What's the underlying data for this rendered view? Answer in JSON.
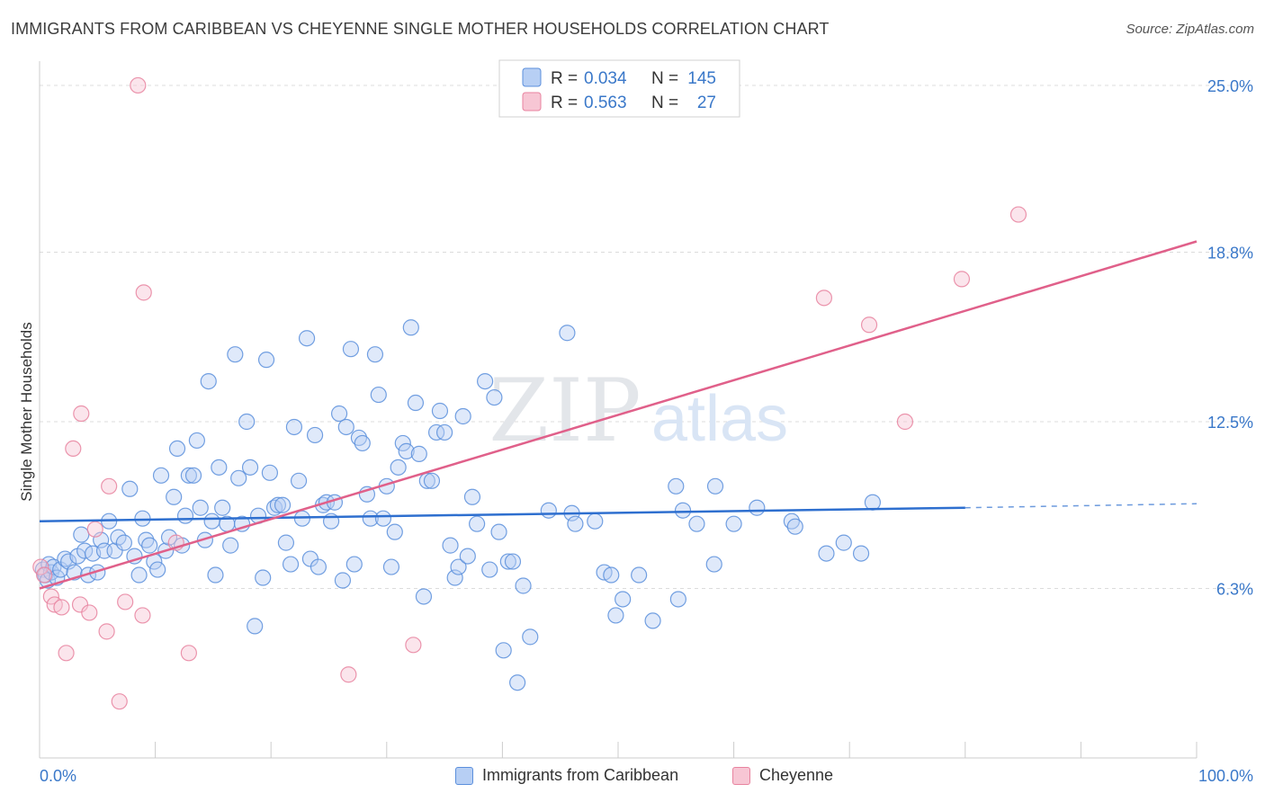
{
  "header": {
    "title": "IMMIGRANTS FROM CARIBBEAN VS CHEYENNE SINGLE MOTHER HOUSEHOLDS CORRELATION CHART",
    "source": "Source: ZipAtlas.com"
  },
  "watermark": {
    "zip": "ZIP",
    "atlas": "atlas"
  },
  "colors": {
    "blue": "#5b8fdc",
    "blue_fill": "#b7cff4",
    "blue_line": "#2e6fcf",
    "pink": "#e8839f",
    "pink_fill": "#f7c6d4",
    "pink_line": "#e0608a",
    "tick_label": "#3a78c9"
  },
  "legend": {
    "rows": [
      {
        "r_label": "R =",
        "r_value": "0.034",
        "n_label": "N =",
        "n_value": "145"
      },
      {
        "r_label": "R =",
        "r_value": "0.563",
        "n_label": "N =",
        "n_value": "27"
      }
    ]
  },
  "chart_data": {
    "type": "scatter",
    "title": "IMMIGRANTS FROM CARIBBEAN VS CHEYENNE SINGLE MOTHER HOUSEHOLDS CORRELATION CHART",
    "xlabel": "",
    "ylabel": "Single Mother Households",
    "xlim": [
      0,
      100
    ],
    "ylim": [
      0,
      25.5
    ],
    "x_tick_labels": [
      "0.0%",
      "100.0%"
    ],
    "y_ticks": [
      6.3,
      12.5,
      18.8,
      25.0
    ],
    "y_tick_labels": [
      "6.3%",
      "12.5%",
      "18.8%",
      "25.0%"
    ],
    "grid": "horizontal dashed",
    "legend_position": "top-center",
    "series": [
      {
        "name": "Immigrants from Caribbean",
        "color": "blue",
        "R": 0.034,
        "N": 145,
        "trend": {
          "x": [
            0,
            80
          ],
          "y": [
            8.8,
            9.3
          ],
          "dashed_to": [
            100,
            9.45
          ]
        },
        "points": [
          [
            0.3,
            7.0
          ],
          [
            0.5,
            6.8
          ],
          [
            0.7,
            6.6
          ],
          [
            0.8,
            7.2
          ],
          [
            1.0,
            6.9
          ],
          [
            1.2,
            7.1
          ],
          [
            1.5,
            6.7
          ],
          [
            1.8,
            7.0
          ],
          [
            2.2,
            7.4
          ],
          [
            2.5,
            7.3
          ],
          [
            3.0,
            6.9
          ],
          [
            3.3,
            7.5
          ],
          [
            3.6,
            8.3
          ],
          [
            3.9,
            7.7
          ],
          [
            4.2,
            6.8
          ],
          [
            4.6,
            7.6
          ],
          [
            5.0,
            6.9
          ],
          [
            5.3,
            8.1
          ],
          [
            5.6,
            7.7
          ],
          [
            6.0,
            8.8
          ],
          [
            6.5,
            7.7
          ],
          [
            6.8,
            8.2
          ],
          [
            7.3,
            8.0
          ],
          [
            7.8,
            10.0
          ],
          [
            8.2,
            7.5
          ],
          [
            8.6,
            6.8
          ],
          [
            8.9,
            8.9
          ],
          [
            9.2,
            8.1
          ],
          [
            9.5,
            7.9
          ],
          [
            9.9,
            7.3
          ],
          [
            10.2,
            7.0
          ],
          [
            10.5,
            10.5
          ],
          [
            10.9,
            7.7
          ],
          [
            11.2,
            8.2
          ],
          [
            11.6,
            9.7
          ],
          [
            11.9,
            11.5
          ],
          [
            12.3,
            7.9
          ],
          [
            12.6,
            9.0
          ],
          [
            12.9,
            10.5
          ],
          [
            13.3,
            10.5
          ],
          [
            13.6,
            11.8
          ],
          [
            13.9,
            9.3
          ],
          [
            14.3,
            8.1
          ],
          [
            14.6,
            14.0
          ],
          [
            14.9,
            8.8
          ],
          [
            15.2,
            6.8
          ],
          [
            15.5,
            10.8
          ],
          [
            15.8,
            9.3
          ],
          [
            16.2,
            8.7
          ],
          [
            16.5,
            7.9
          ],
          [
            16.9,
            15.0
          ],
          [
            17.2,
            10.4
          ],
          [
            17.5,
            8.7
          ],
          [
            17.9,
            12.5
          ],
          [
            18.2,
            10.8
          ],
          [
            18.6,
            4.9
          ],
          [
            18.9,
            9.0
          ],
          [
            19.3,
            6.7
          ],
          [
            19.6,
            14.8
          ],
          [
            19.9,
            10.6
          ],
          [
            20.3,
            9.3
          ],
          [
            20.6,
            9.4
          ],
          [
            21.0,
            9.4
          ],
          [
            21.3,
            8.0
          ],
          [
            21.7,
            7.2
          ],
          [
            22.0,
            12.3
          ],
          [
            22.4,
            10.3
          ],
          [
            22.7,
            8.9
          ],
          [
            23.1,
            15.6
          ],
          [
            23.4,
            7.4
          ],
          [
            23.8,
            12.0
          ],
          [
            24.1,
            7.1
          ],
          [
            24.5,
            9.4
          ],
          [
            24.8,
            9.5
          ],
          [
            25.2,
            8.8
          ],
          [
            25.5,
            9.5
          ],
          [
            25.9,
            12.8
          ],
          [
            26.2,
            6.6
          ],
          [
            26.5,
            12.3
          ],
          [
            26.9,
            15.2
          ],
          [
            27.2,
            7.2
          ],
          [
            27.6,
            11.9
          ],
          [
            27.9,
            11.7
          ],
          [
            28.3,
            9.8
          ],
          [
            28.6,
            8.9
          ],
          [
            29.0,
            15.0
          ],
          [
            29.3,
            13.5
          ],
          [
            29.7,
            8.9
          ],
          [
            30.0,
            10.1
          ],
          [
            30.4,
            7.1
          ],
          [
            30.7,
            8.4
          ],
          [
            31.0,
            10.8
          ],
          [
            31.4,
            11.7
          ],
          [
            31.7,
            11.4
          ],
          [
            32.1,
            16.0
          ],
          [
            32.5,
            13.2
          ],
          [
            32.8,
            11.3
          ],
          [
            33.2,
            6.0
          ],
          [
            33.5,
            10.3
          ],
          [
            33.9,
            10.3
          ],
          [
            34.3,
            12.1
          ],
          [
            34.6,
            12.9
          ],
          [
            35.0,
            12.1
          ],
          [
            35.5,
            7.9
          ],
          [
            35.9,
            6.7
          ],
          [
            36.2,
            7.1
          ],
          [
            36.6,
            12.7
          ],
          [
            37.0,
            7.5
          ],
          [
            37.4,
            9.7
          ],
          [
            37.8,
            8.7
          ],
          [
            38.5,
            14.0
          ],
          [
            38.9,
            7.0
          ],
          [
            39.3,
            13.4
          ],
          [
            39.7,
            8.4
          ],
          [
            40.1,
            4.0
          ],
          [
            40.5,
            7.3
          ],
          [
            40.9,
            7.3
          ],
          [
            41.3,
            2.8
          ],
          [
            41.8,
            6.4
          ],
          [
            42.4,
            4.5
          ],
          [
            44.0,
            9.2
          ],
          [
            45.6,
            15.8
          ],
          [
            46.0,
            9.1
          ],
          [
            46.3,
            8.7
          ],
          [
            48.0,
            8.8
          ],
          [
            48.8,
            6.9
          ],
          [
            49.4,
            6.8
          ],
          [
            49.8,
            5.3
          ],
          [
            50.4,
            5.9
          ],
          [
            51.8,
            6.8
          ],
          [
            53.0,
            5.1
          ],
          [
            55.0,
            10.1
          ],
          [
            55.2,
            5.9
          ],
          [
            56.8,
            8.7
          ],
          [
            58.3,
            7.2
          ],
          [
            62.0,
            9.3
          ],
          [
            65.0,
            8.8
          ],
          [
            65.3,
            8.6
          ],
          [
            68.0,
            7.6
          ],
          [
            69.5,
            8.0
          ],
          [
            71.0,
            7.6
          ],
          [
            58.4,
            10.1
          ],
          [
            72.0,
            9.5
          ],
          [
            55.6,
            9.2
          ],
          [
            60.0,
            8.7
          ]
        ]
      },
      {
        "name": "Cheyenne",
        "color": "pink",
        "R": 0.563,
        "N": 27,
        "trend": {
          "x": [
            0,
            100
          ],
          "y": [
            6.3,
            19.2
          ]
        },
        "points": [
          [
            0.1,
            7.1
          ],
          [
            0.4,
            6.8
          ],
          [
            1.0,
            6.0
          ],
          [
            1.3,
            5.7
          ],
          [
            1.9,
            5.6
          ],
          [
            2.3,
            3.9
          ],
          [
            2.9,
            11.5
          ],
          [
            3.5,
            5.7
          ],
          [
            3.6,
            12.8
          ],
          [
            4.3,
            5.4
          ],
          [
            4.8,
            8.5
          ],
          [
            5.8,
            4.7
          ],
          [
            6.0,
            10.1
          ],
          [
            6.9,
            2.1
          ],
          [
            7.4,
            5.8
          ],
          [
            8.9,
            5.3
          ],
          [
            9.0,
            17.3
          ],
          [
            11.8,
            8.0
          ],
          [
            12.9,
            3.9
          ],
          [
            26.7,
            3.1
          ],
          [
            32.3,
            4.2
          ],
          [
            67.8,
            17.1
          ],
          [
            71.7,
            16.1
          ],
          [
            74.8,
            12.5
          ],
          [
            79.7,
            17.8
          ],
          [
            84.6,
            20.2
          ],
          [
            8.5,
            25.0
          ]
        ]
      }
    ]
  },
  "bottom_legend": {
    "items": [
      {
        "label": "Immigrants from Caribbean",
        "color": "blue"
      },
      {
        "label": "Cheyenne",
        "color": "pink"
      }
    ]
  }
}
